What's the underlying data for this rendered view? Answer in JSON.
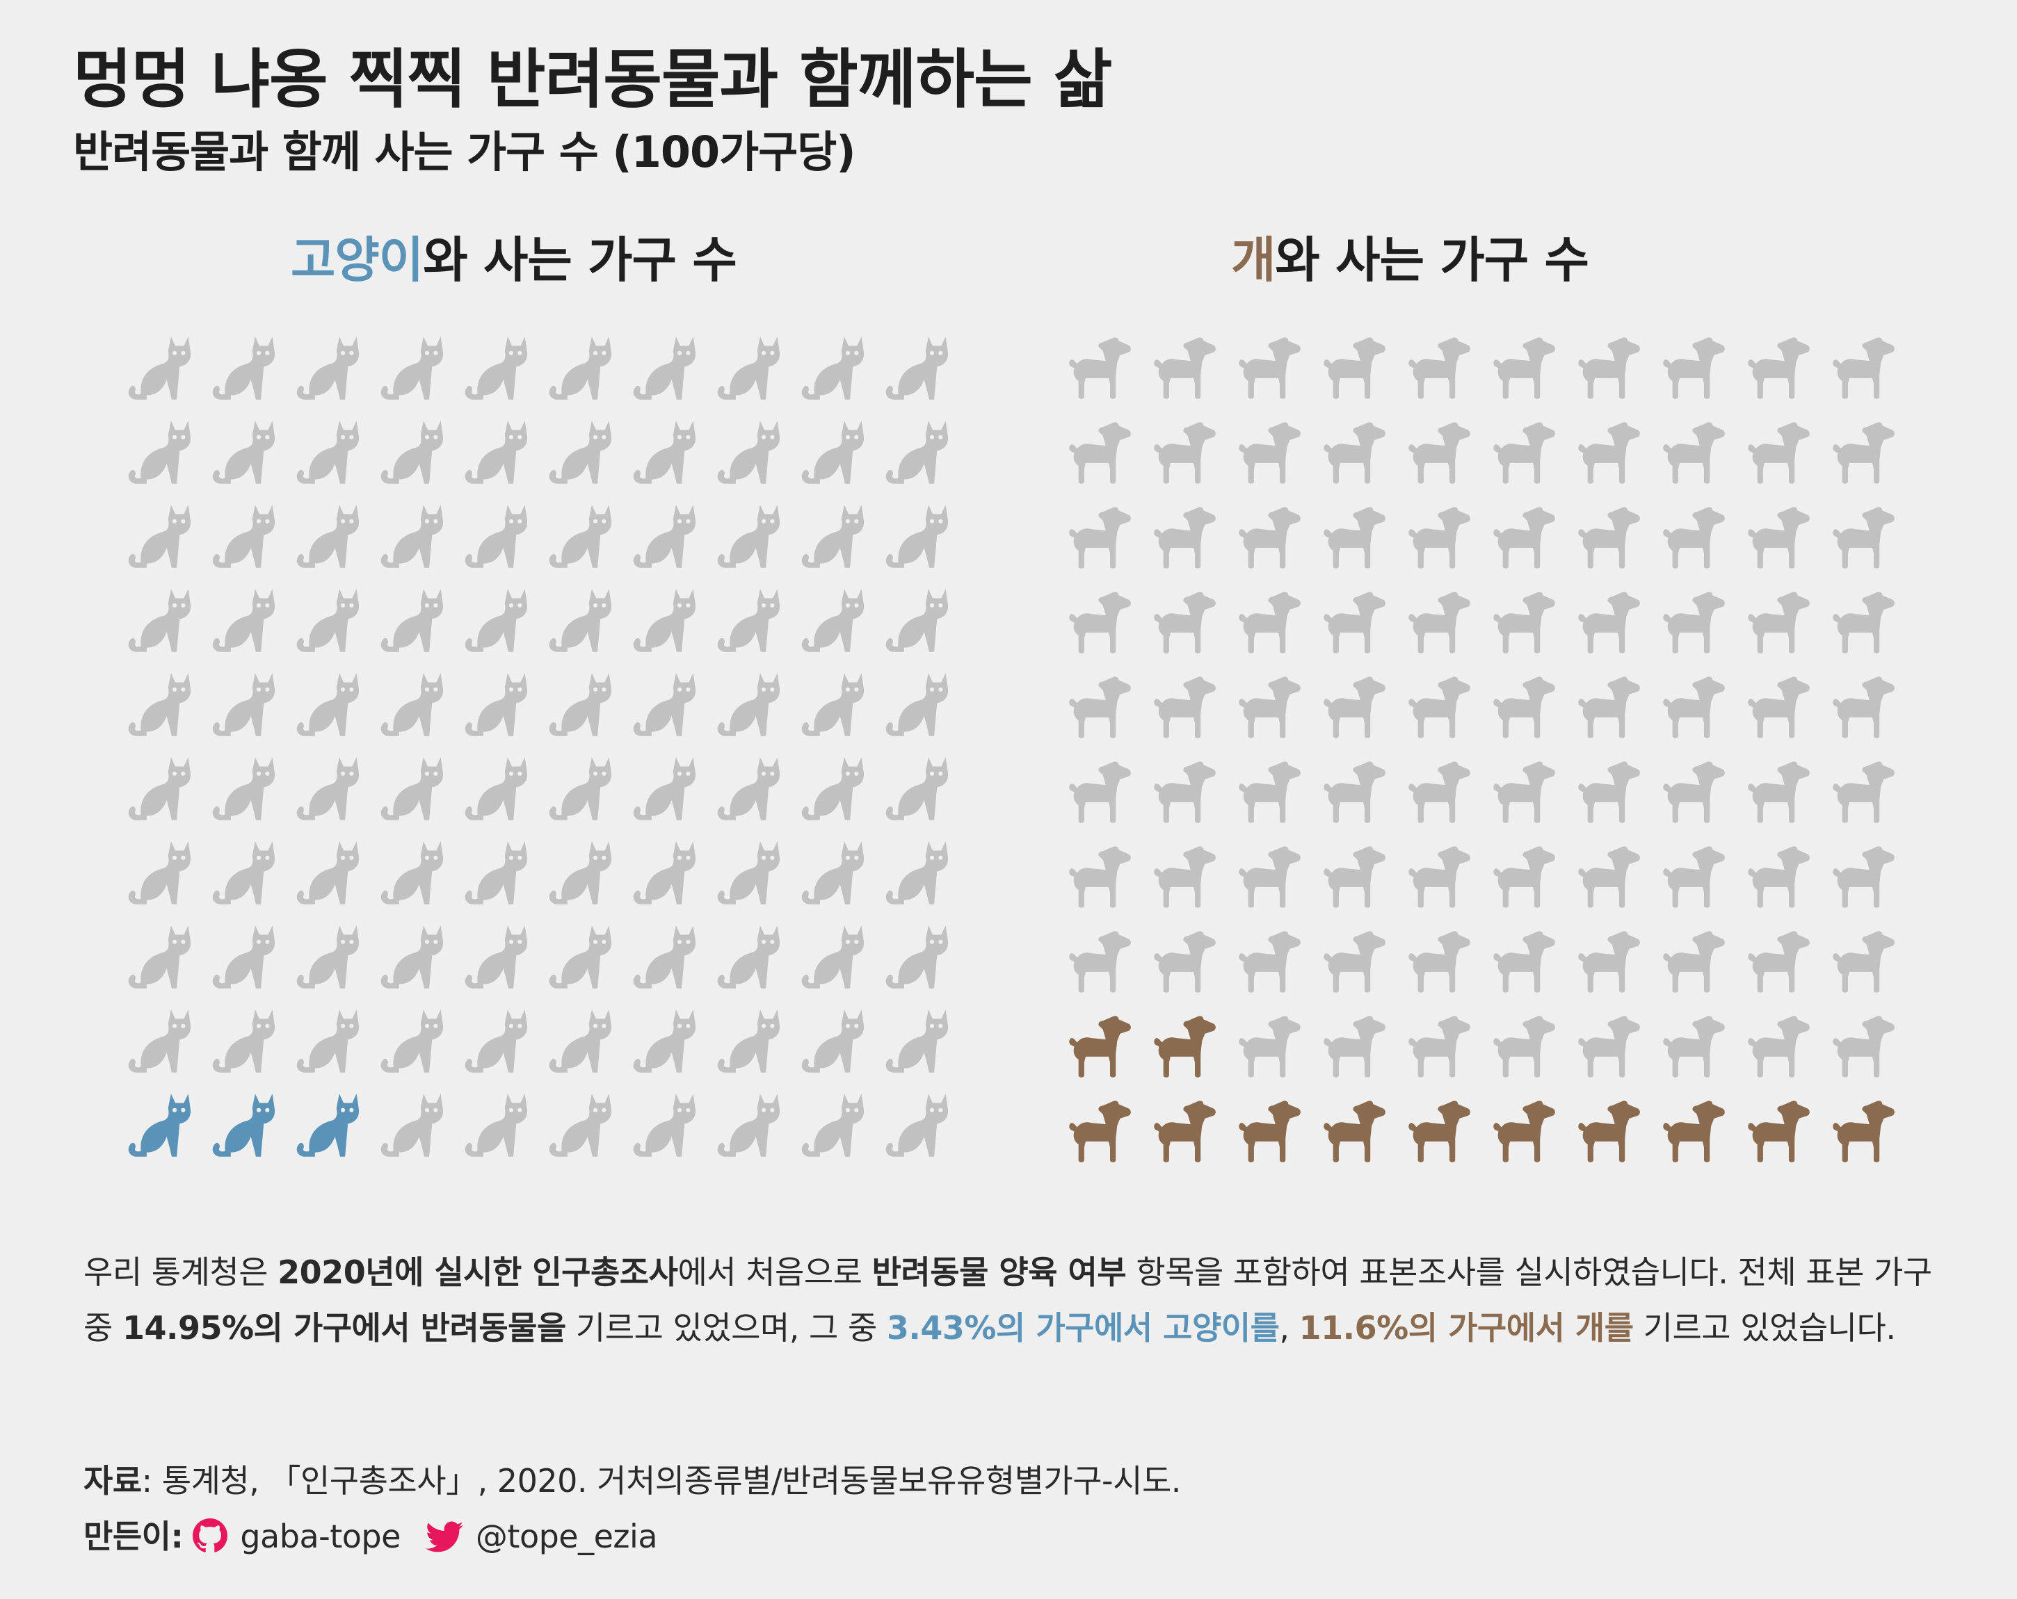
{
  "header": {
    "title": "멍멍 냐옹 찍찍 반려동물과 함께하는 삶",
    "subtitle": "반려동물과 함께 사는 가구 수 (100가구당)"
  },
  "panels": {
    "cat": {
      "highlight": "고양이",
      "rest": "와 사는 가구 수"
    },
    "dog": {
      "highlight": "개",
      "rest": "와 사는 가구 수"
    }
  },
  "chart_data": [
    {
      "type": "waffle",
      "title": "고양이와 사는 가구 수",
      "total": 100,
      "highlighted": 3,
      "grid": [
        10,
        10
      ],
      "icon": "cat-icon",
      "color_highlight": "#5b93b8",
      "color_base": "#c1c1c1"
    },
    {
      "type": "waffle",
      "title": "개와 사는 가구 수",
      "total": 100,
      "highlighted": 12,
      "grid": [
        10,
        10
      ],
      "icon": "dog-icon",
      "color_highlight": "#8b6b4f",
      "color_base": "#c1c1c1"
    }
  ],
  "description": {
    "p1": "우리 통계청은 ",
    "b1": "2020년에 실시한 인구총조사",
    "p2": "에서 처음으로 ",
    "b2": "반려동물 양육 여부",
    "p3": " 항목을 포함하여 표본조사를 실시하였습니다. 전체 표본 가구 중 ",
    "b3": "14.95%의 가구에서 반려동물을",
    "p4": " 기르고 있었으며, 그 중 ",
    "cat_text": "3.43%의 가구에서 고양이를",
    "p5": ", ",
    "dog_text": "11.6%의 가구에서 개를",
    "p6": " 기르고 있었습니다."
  },
  "source": {
    "label": "자료",
    "text": ": 통계청, 「인구총조사」, 2020. 거처의종류별/반려동물보유유형별가구-시도.",
    "maker_label": "만든이:",
    "github_handle": "gaba-tope",
    "twitter_handle": "@tope_ezia",
    "icon_color": "#e8175d"
  }
}
